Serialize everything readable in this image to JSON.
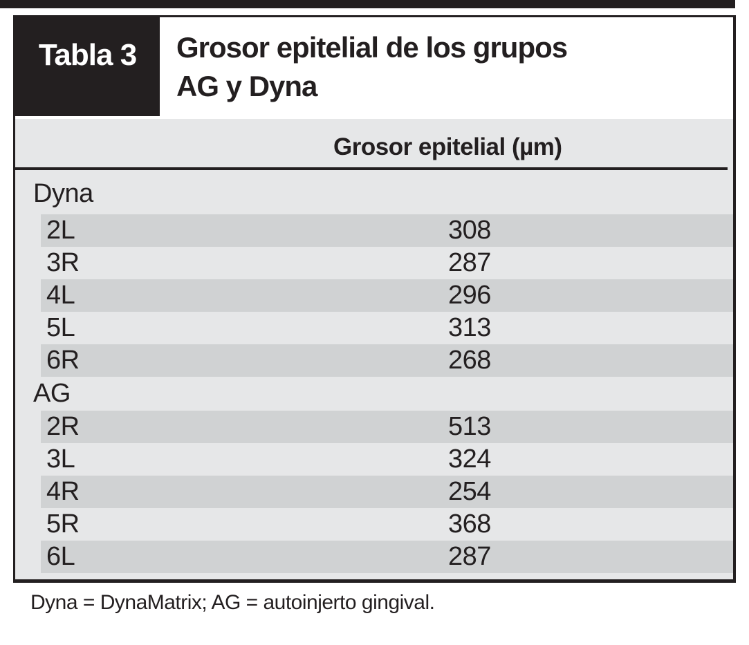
{
  "table": {
    "tag": "Tabla 3",
    "title_lines": [
      "Grosor epitelial de los grupos",
      "AG y Dyna"
    ],
    "column_header": "Grosor epitelial (µm)",
    "groups": [
      {
        "name": "Dyna",
        "rows": [
          {
            "label": "2L",
            "value": "308"
          },
          {
            "label": "3R",
            "value": "287"
          },
          {
            "label": "4L",
            "value": "296"
          },
          {
            "label": "5L",
            "value": "313"
          },
          {
            "label": "6R",
            "value": "268"
          }
        ]
      },
      {
        "name": "AG",
        "rows": [
          {
            "label": "2R",
            "value": "513"
          },
          {
            "label": "3L",
            "value": "324"
          },
          {
            "label": "4R",
            "value": "254"
          },
          {
            "label": "5R",
            "value": "368"
          },
          {
            "label": "6L",
            "value": "287"
          }
        ]
      }
    ],
    "footnote": "Dyna = DynaMatrix; AG = autoinjerto gingival."
  },
  "colors": {
    "ink": "#231f20",
    "body_gray": "#e6e7e8",
    "stripe_gray": "#d0d2d3"
  }
}
